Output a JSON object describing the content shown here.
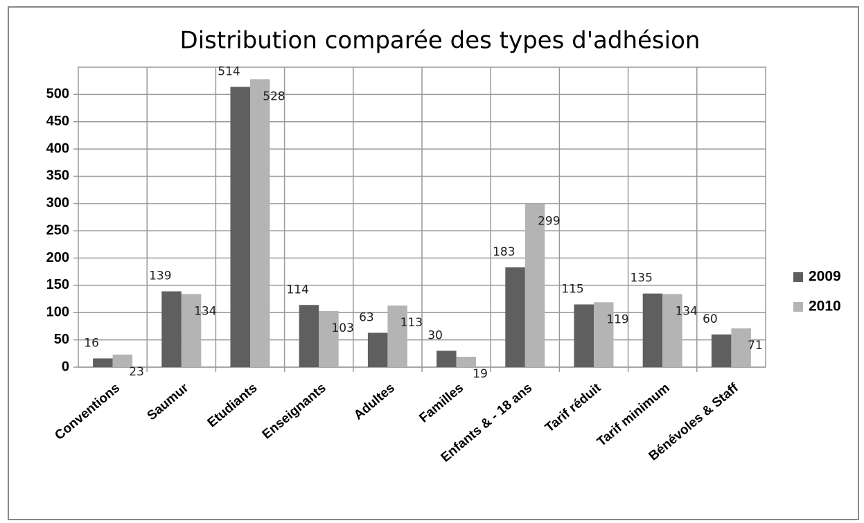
{
  "chart_data": {
    "type": "bar",
    "title": "Distribution comparée des types d'adhésion",
    "categories": [
      "Conventions",
      "Saumur",
      "Etudiants",
      "Enseignants",
      "Adultes",
      "Familles",
      "Enfants & - 18 ans",
      "Tarif réduit",
      "Tarif minimum",
      "Bénévoles & Staff"
    ],
    "series": [
      {
        "name": "2009",
        "color": "#5f5f5f",
        "values": [
          16,
          139,
          514,
          114,
          63,
          30,
          183,
          115,
          135,
          60
        ]
      },
      {
        "name": "2010",
        "color": "#b4b4b4",
        "values": [
          23,
          134,
          528,
          103,
          113,
          19,
          299,
          119,
          134,
          71
        ]
      }
    ],
    "ylim": [
      0,
      550
    ],
    "yticks": [
      0,
      50,
      100,
      150,
      200,
      250,
      300,
      350,
      400,
      450,
      500
    ],
    "grid": true,
    "legend": "right"
  }
}
